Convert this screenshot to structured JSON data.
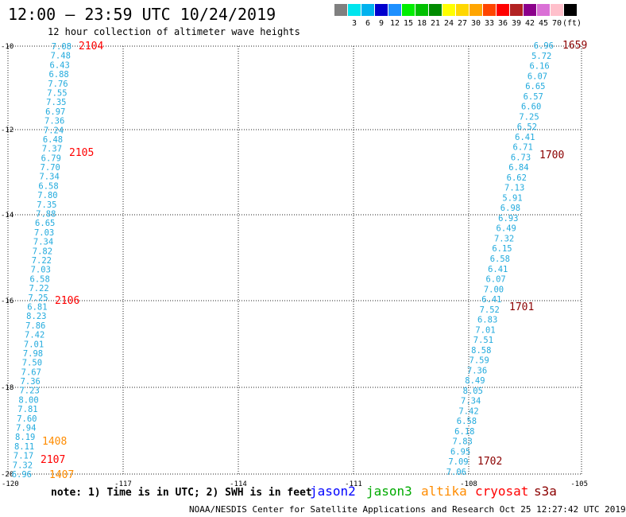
{
  "header": {
    "title": "12:00 – 23:59 UTC 10/24/2019",
    "subtitle": "12 hour collection of altimeter wave heights"
  },
  "scale": {
    "unit": "(ft)",
    "items": [
      {
        "color": "#808080",
        "label": ""
      },
      {
        "color": "#00e5ee",
        "label": "3"
      },
      {
        "color": "#00b2ee",
        "label": "6"
      },
      {
        "color": "#0000cd",
        "label": "9"
      },
      {
        "color": "#1e90ff",
        "label": "12"
      },
      {
        "color": "#00ee00",
        "label": "15"
      },
      {
        "color": "#00c000",
        "label": "18"
      },
      {
        "color": "#008b00",
        "label": "21"
      },
      {
        "color": "#ffff00",
        "label": "24"
      },
      {
        "color": "#ffd700",
        "label": "27"
      },
      {
        "color": "#ffa500",
        "label": "30"
      },
      {
        "color": "#ff4500",
        "label": "33"
      },
      {
        "color": "#ff0000",
        "label": "36"
      },
      {
        "color": "#b22222",
        "label": "39"
      },
      {
        "color": "#8b008b",
        "label": "42"
      },
      {
        "color": "#da70d6",
        "label": "45"
      },
      {
        "color": "#ffc0cb",
        "label": "70"
      },
      {
        "color": "#000000",
        "label": ""
      }
    ]
  },
  "axes": {
    "lat_labels": [
      "-10",
      "-12",
      "-14",
      "-16",
      "-18",
      "-20"
    ],
    "lon_labels": [
      "-120",
      "-117",
      "-114",
      "-111",
      "-108",
      "-105"
    ]
  },
  "colors": {
    "track_cyan": "#22aadd",
    "jason2": "#0000ff",
    "jason3": "#00aa00",
    "altika": "#ff8c00",
    "cryosat": "#ff0000",
    "s3a": "#8b0000"
  },
  "track_left": {
    "values": [
      "7.08",
      "7.48",
      "6.43",
      "6.88",
      "7.76",
      "7.55",
      "7.35",
      "6.97",
      "7.36",
      "7.24",
      "6.48",
      "7.37",
      "6.79",
      "7.70",
      "7.34",
      "6.58",
      "7.80",
      "7.35",
      "7.88",
      "6.65",
      "7.03",
      "7.34",
      "7.82",
      "7.22",
      "7.03",
      "6.58",
      "7.22",
      "7.25",
      "6.81",
      "8.23",
      "7.86",
      "7.42",
      "7.01",
      "7.98",
      "7.50",
      "7.67",
      "7.36",
      "7.23",
      "8.00",
      "7.81",
      "7.60",
      "7.94",
      "8.19",
      "8.11",
      "7.17",
      "7.32",
      "6.96"
    ],
    "times": [
      {
        "label": "2104",
        "color": "cryosat"
      },
      {
        "label": "2105",
        "color": "cryosat"
      },
      {
        "label": "2106",
        "color": "cryosat"
      },
      {
        "label": "2107",
        "color": "cryosat"
      }
    ]
  },
  "track_right": {
    "values": [
      "6.96",
      "5.72",
      "6.16",
      "6.07",
      "6.65",
      "6.57",
      "6.60",
      "7.25",
      "6.52",
      "6.41",
      "6.71",
      "6.73",
      "6.84",
      "6.62",
      "7.13",
      "5.91",
      "6.98",
      "6.93",
      "6.49",
      "7.32",
      "6.15",
      "6.58",
      "6.41",
      "6.07",
      "7.00",
      "6.41",
      "7.52",
      "6.83",
      "7.01",
      "7.51",
      "8.58",
      "7.59",
      "7.36",
      "8.49",
      "8.05",
      "7.34",
      "7.42",
      "6.58",
      "6.18",
      "7.83",
      "6.95",
      "7.09",
      "7.06"
    ],
    "times": [
      {
        "label": "1659",
        "color": "s3a"
      },
      {
        "label": "1700",
        "color": "s3a"
      },
      {
        "label": "1701",
        "color": "s3a"
      },
      {
        "label": "1702",
        "color": "s3a"
      }
    ]
  },
  "altika_times": [
    "1408",
    "1407"
  ],
  "footer": {
    "note": "note:  1) Time is in UTC;  2) SWH is in feet",
    "legend": [
      {
        "label": "jason2",
        "color": "jason2"
      },
      {
        "label": "jason3",
        "color": "jason3"
      },
      {
        "label": "altika",
        "color": "altika"
      },
      {
        "label": "cryosat",
        "color": "cryosat"
      },
      {
        "label": "s3a",
        "color": "s3a"
      }
    ],
    "credit": "NOAA/NESDIS Center for Satellite Applications and Research    Oct 25 12:27:42 UTC 2019"
  }
}
